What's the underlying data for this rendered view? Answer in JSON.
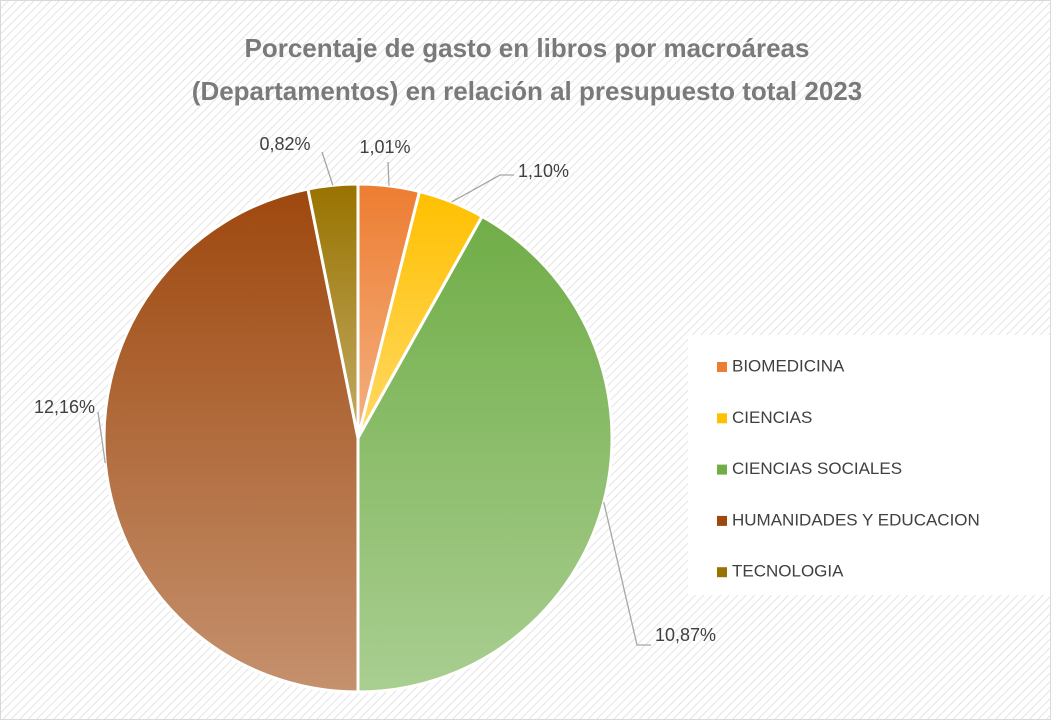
{
  "chart_data": {
    "type": "pie",
    "title": [
      "Porcentaje de gasto en libros por macroáreas",
      "(Departamentos) en relación al presupuesto total 2023"
    ],
    "categories": [
      "BIOMEDICINA",
      "CIENCIAS",
      "CIENCIAS SOCIALES",
      "HUMANIDADES Y EDUCACION",
      "TECNOLOGIA"
    ],
    "values": [
      1.01,
      1.1,
      10.87,
      12.16,
      0.82
    ],
    "value_labels": [
      "1,01%",
      "1,10%",
      "10,87%",
      "12,16%",
      "0,82%"
    ],
    "colors": [
      "#ed7d31",
      "#ffc000",
      "#70ad47",
      "#9e480e",
      "#997300"
    ],
    "legend": "right"
  }
}
